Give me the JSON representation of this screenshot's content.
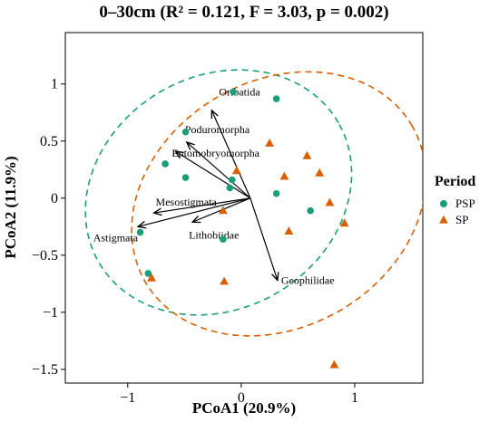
{
  "chart_data": {
    "type": "scatter",
    "title": "0–30cm (R² = 0.121, F = 3.03, p = 0.002)",
    "xlabel": "PCoA1 (20.9%)",
    "ylabel": "PCoA2 (11.9%)",
    "xlim": [
      -1.55,
      1.6
    ],
    "ylim": [
      -1.62,
      1.45
    ],
    "x_ticks": [
      -1,
      0,
      1
    ],
    "y_ticks": [
      1,
      0.5,
      0,
      -0.5,
      -1,
      -1.5
    ],
    "x_tick_labels": [
      "−1",
      "0",
      "1"
    ],
    "y_tick_labels": [
      "1",
      "0.5",
      "0",
      "−0.5",
      "−1",
      "−1.5"
    ],
    "grid": false,
    "legend": {
      "title": "Period",
      "position": "right"
    },
    "series": [
      {
        "name": "PSP",
        "color": "#1a9e77",
        "marker": "circle",
        "points": [
          [
            -0.07,
            0.93
          ],
          [
            0.31,
            0.87
          ],
          [
            -0.49,
            0.58
          ],
          [
            -0.67,
            0.3
          ],
          [
            -0.49,
            0.18
          ],
          [
            -0.08,
            0.16
          ],
          [
            -0.1,
            0.09
          ],
          [
            0.31,
            0.04
          ],
          [
            0.61,
            -0.11
          ],
          [
            -0.89,
            -0.3
          ],
          [
            -0.16,
            -0.36
          ],
          [
            -0.82,
            -0.66
          ]
        ]
      },
      {
        "name": "SP",
        "color": "#d95f02",
        "marker": "triangle",
        "points": [
          [
            0.25,
            0.48
          ],
          [
            0.58,
            0.37
          ],
          [
            0.38,
            0.19
          ],
          [
            0.69,
            0.22
          ],
          [
            -0.04,
            0.24
          ],
          [
            0.78,
            -0.04
          ],
          [
            -0.16,
            -0.11
          ],
          [
            0.91,
            -0.22
          ],
          [
            0.42,
            -0.29
          ],
          [
            -0.79,
            -0.7
          ],
          [
            -0.15,
            -0.73
          ],
          [
            0.82,
            -1.46
          ]
        ]
      }
    ],
    "ellipses": [
      {
        "series": "PSP",
        "color": "#1a9e77",
        "cx": -0.2,
        "cy": 0.05,
        "rx": 1.22,
        "ry": 1.02,
        "angle": 30
      },
      {
        "series": "SP",
        "color": "#d95f02",
        "cx": 0.33,
        "cy": -0.05,
        "rx": 1.36,
        "ry": 1.08,
        "angle": 30
      }
    ],
    "arrows": [
      {
        "label": "Oribatida",
        "x": -0.26,
        "y": 0.77
      },
      {
        "label": "Poduromorpha",
        "x": -0.48,
        "y": 0.49
      },
      {
        "label": "Entomobryomorpha",
        "x": -0.58,
        "y": 0.41
      },
      {
        "label": "Mesostigmata",
        "x": -0.77,
        "y": -0.13
      },
      {
        "label": "Astigmata",
        "x": -0.91,
        "y": -0.25
      },
      {
        "label": "Lithobiidae",
        "x": -0.43,
        "y": -0.21
      },
      {
        "label": "Geophilidae",
        "x": 0.32,
        "y": -0.72
      }
    ]
  }
}
